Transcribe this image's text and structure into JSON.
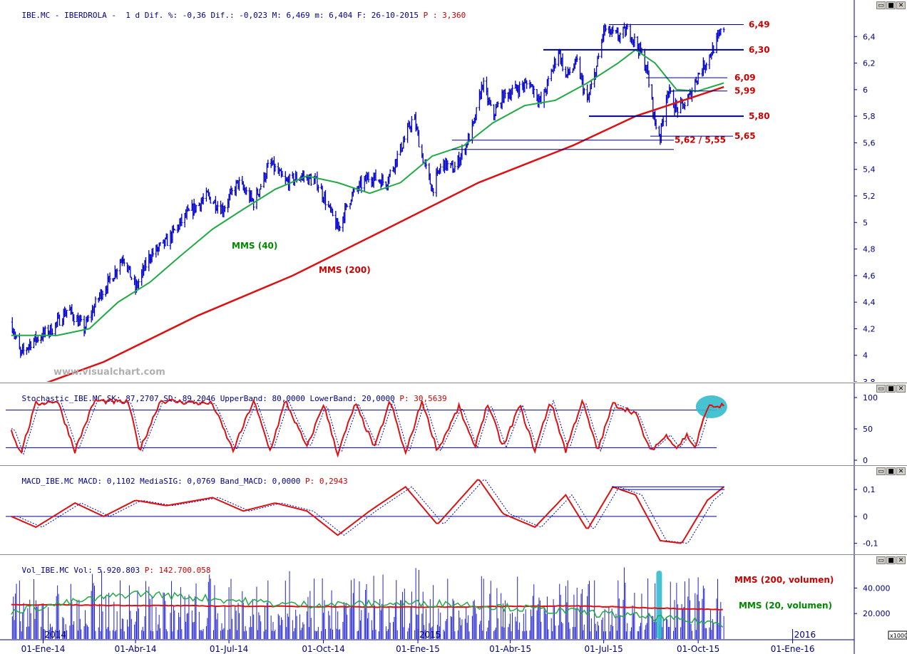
{
  "price_header": {
    "symbol": "IBE.MC",
    "name": "IBERDROLA",
    "period": "1 d",
    "dif_pct_label": "Dif. %:",
    "dif_pct": "-0,36",
    "dif_label": "Dif.:",
    "dif": "-0,023",
    "max_label": "M:",
    "max": "6,469",
    "min_label": "m:",
    "min": "6,404",
    "date_label": "F:",
    "date": "26-10-2015",
    "p_label": "P :",
    "p": "3,360"
  },
  "stoch_header": {
    "name": "Stochastic_IBE.MC",
    "sk_label": "SK:",
    "sk": "87,2707",
    "sd_label": "SD:",
    "sd": "89,2046",
    "ub_label": "UpperBand:",
    "ub": "80,0000",
    "lb_label": "LowerBand:",
    "lb": "20,0000",
    "p_label": "P:",
    "p": "30,5639"
  },
  "macd_header": {
    "name": "MACD_IBE.MC",
    "macd_label": "MACD:",
    "macd": "0,1102",
    "sig_label": "MediaSIG:",
    "sig": "0,0769",
    "band_label": "Band_MACD:",
    "band": "0,0000",
    "p_label": "P:",
    "p": "0,2943"
  },
  "vol_header": {
    "name": "Vol_IBE.MC",
    "vol_label": "Vol:",
    "vol": "5.920.803",
    "p_label": "P:",
    "p": "142.700.058"
  },
  "window_buttons": {
    "minimize": "▭",
    "restore": "■",
    "close": "✕"
  },
  "watermark": "www.visualchart.com",
  "annotations": {
    "mms40": "MMS (40)",
    "mms200": "MMS (200)",
    "mms200_vol": "MMS (200, volumen)",
    "mms20_vol": "MMS (20, volumen)"
  },
  "level_labels": [
    "6,49",
    "6,30",
    "6,09",
    "5,99",
    "5,80",
    "5,65",
    "5,62 / 5,55"
  ],
  "x_axis": {
    "labels": [
      "01-Ene-14",
      "01-Abr-14",
      "01-Jul-14",
      "01-Oct-14",
      "01-Ene-15",
      "01-Abr-15",
      "01-Jul-15",
      "01-Oct-15",
      "01-Ene-16"
    ],
    "year_markers": [
      "2014",
      "2015",
      "2016"
    ],
    "scale_unit": "x1000"
  },
  "colors": {
    "price": "#0000cc",
    "mms40": "#22aa44",
    "mms200": "#dd1111",
    "level_lines": "#00008b",
    "highlight": "#33bbcc",
    "axis_text": "#000080"
  },
  "chart_data": [
    {
      "type": "candlestick",
      "title": "IBE.MC - IBERDROLA",
      "x_range": [
        "2013-11-20",
        "2016-03-01"
      ],
      "ylim": [
        3.8,
        6.6
      ],
      "y_ticks": [
        "3,8",
        "4",
        "4,2",
        "4,4",
        "4,6",
        "4,8",
        "5",
        "5,2",
        "5,4",
        "5,6",
        "5,8",
        "6",
        "6,2",
        "6,4"
      ],
      "price_path": [
        [
          "2013-12-01",
          4.25
        ],
        [
          "2013-12-10",
          4.0
        ],
        [
          "2013-12-20",
          4.1
        ],
        [
          "2014-01-10",
          4.2
        ],
        [
          "2014-01-25",
          4.35
        ],
        [
          "2014-02-10",
          4.2
        ],
        [
          "2014-02-25",
          4.45
        ],
        [
          "2014-03-10",
          4.6
        ],
        [
          "2014-03-20",
          4.75
        ],
        [
          "2014-04-01",
          4.5
        ],
        [
          "2014-04-15",
          4.75
        ],
        [
          "2014-05-01",
          4.85
        ],
        [
          "2014-05-20",
          5.05
        ],
        [
          "2014-06-10",
          5.2
        ],
        [
          "2014-06-25",
          5.1
        ],
        [
          "2014-07-10",
          5.3
        ],
        [
          "2014-07-25",
          5.15
        ],
        [
          "2014-08-10",
          5.45
        ],
        [
          "2014-08-25",
          5.3
        ],
        [
          "2014-09-10",
          5.35
        ],
        [
          "2014-09-25",
          5.3
        ],
        [
          "2014-10-01",
          5.2
        ],
        [
          "2014-10-15",
          4.95
        ],
        [
          "2014-10-28",
          5.2
        ],
        [
          "2014-11-15",
          5.35
        ],
        [
          "2014-12-01",
          5.3
        ],
        [
          "2014-12-15",
          5.55
        ],
        [
          "2014-12-28",
          5.8
        ],
        [
          "2015-01-05",
          5.5
        ],
        [
          "2015-01-15",
          5.25
        ],
        [
          "2015-01-25",
          5.45
        ],
        [
          "2015-02-05",
          5.4
        ],
        [
          "2015-02-15",
          5.55
        ],
        [
          "2015-02-25",
          5.75
        ],
        [
          "2015-03-05",
          6.05
        ],
        [
          "2015-03-15",
          5.8
        ],
        [
          "2015-03-25",
          5.95
        ],
        [
          "2015-04-05",
          6.0
        ],
        [
          "2015-04-20",
          6.05
        ],
        [
          "2015-05-01",
          5.9
        ],
        [
          "2015-05-10",
          6.1
        ],
        [
          "2015-05-18",
          6.3
        ],
        [
          "2015-05-25",
          6.1
        ],
        [
          "2015-06-05",
          6.2
        ],
        [
          "2015-06-15",
          5.9
        ],
        [
          "2015-06-25",
          6.2
        ],
        [
          "2015-07-01",
          6.45
        ],
        [
          "2015-07-15",
          6.4
        ],
        [
          "2015-07-25",
          6.45
        ],
        [
          "2015-08-05",
          6.3
        ],
        [
          "2015-08-12",
          6.15
        ],
        [
          "2015-08-20",
          5.75
        ],
        [
          "2015-08-25",
          5.65
        ],
        [
          "2015-09-01",
          6.0
        ],
        [
          "2015-09-10",
          5.85
        ],
        [
          "2015-09-20",
          5.9
        ],
        [
          "2015-09-30",
          6.1
        ],
        [
          "2015-10-08",
          6.2
        ],
        [
          "2015-10-15",
          6.3
        ],
        [
          "2015-10-26",
          6.47
        ]
      ],
      "series": [
        {
          "name": "MMS (40)",
          "values": [
            [
              "2013-12-01",
              4.15
            ],
            [
              "2014-01-15",
              4.15
            ],
            [
              "2014-02-15",
              4.2
            ],
            [
              "2014-03-15",
              4.4
            ],
            [
              "2014-04-15",
              4.55
            ],
            [
              "2014-05-15",
              4.75
            ],
            [
              "2014-06-15",
              4.95
            ],
            [
              "2014-07-15",
              5.1
            ],
            [
              "2014-08-15",
              5.25
            ],
            [
              "2014-09-15",
              5.35
            ],
            [
              "2014-10-15",
              5.3
            ],
            [
              "2014-11-15",
              5.22
            ],
            [
              "2014-12-15",
              5.3
            ],
            [
              "2015-01-15",
              5.5
            ],
            [
              "2015-02-15",
              5.58
            ],
            [
              "2015-03-15",
              5.75
            ],
            [
              "2015-04-15",
              5.88
            ],
            [
              "2015-05-15",
              5.92
            ],
            [
              "2015-06-15",
              6.05
            ],
            [
              "2015-07-15",
              6.2
            ],
            [
              "2015-08-01",
              6.3
            ],
            [
              "2015-08-20",
              6.2
            ],
            [
              "2015-09-10",
              6.0
            ],
            [
              "2015-10-01",
              5.99
            ],
            [
              "2015-10-26",
              6.05
            ]
          ]
        },
        {
          "name": "MMS (200)",
          "values": [
            [
              "2013-12-20",
              3.75
            ],
            [
              "2014-03-01",
              3.95
            ],
            [
              "2014-06-01",
              4.3
            ],
            [
              "2014-09-01",
              4.6
            ],
            [
              "2014-12-01",
              4.95
            ],
            [
              "2015-03-01",
              5.3
            ],
            [
              "2015-06-01",
              5.58
            ],
            [
              "2015-08-01",
              5.8
            ],
            [
              "2015-10-26",
              6.02
            ]
          ]
        }
      ],
      "levels": [
        {
          "label": "6,49",
          "value": 6.49
        },
        {
          "label": "6,30",
          "value": 6.3
        },
        {
          "label": "6,09",
          "value": 6.09
        },
        {
          "label": "5,99",
          "value": 5.99
        },
        {
          "label": "5,80",
          "value": 5.8
        },
        {
          "label": "5,65",
          "value": 5.65
        },
        {
          "label": "5,62 / 5,55",
          "values": [
            5.62,
            5.55
          ]
        }
      ]
    },
    {
      "type": "line",
      "title": "Stochastic_IBE.MC",
      "ylim": [
        0,
        100
      ],
      "y_ticks": [
        "0",
        "50",
        "100"
      ],
      "bands": [
        80,
        20
      ],
      "series": [
        {
          "name": "SK",
          "values": [
            [
              "2013-12-01",
              50
            ],
            [
              "2013-12-10",
              10
            ],
            [
              "2013-12-25",
              90
            ],
            [
              "2014-01-15",
              95
            ],
            [
              "2014-02-01",
              15
            ],
            [
              "2014-02-20",
              95
            ],
            [
              "2014-03-25",
              92
            ],
            [
              "2014-04-05",
              15
            ],
            [
              "2014-04-25",
              95
            ],
            [
              "2014-06-15",
              90
            ],
            [
              "2014-07-05",
              15
            ],
            [
              "2014-07-25",
              95
            ],
            [
              "2014-08-10",
              15
            ],
            [
              "2014-08-25",
              95
            ],
            [
              "2014-09-15",
              20
            ],
            [
              "2014-10-01",
              90
            ],
            [
              "2014-10-15",
              10
            ],
            [
              "2014-11-01",
              90
            ],
            [
              "2014-11-20",
              20
            ],
            [
              "2014-12-05",
              95
            ],
            [
              "2014-12-20",
              10
            ],
            [
              "2015-01-05",
              95
            ],
            [
              "2015-01-20",
              15
            ],
            [
              "2015-02-10",
              85
            ],
            [
              "2015-02-25",
              20
            ],
            [
              "2015-03-10",
              90
            ],
            [
              "2015-03-25",
              20
            ],
            [
              "2015-04-10",
              88
            ],
            [
              "2015-04-25",
              15
            ],
            [
              "2015-05-10",
              95
            ],
            [
              "2015-05-25",
              15
            ],
            [
              "2015-06-10",
              95
            ],
            [
              "2015-06-25",
              15
            ],
            [
              "2015-07-10",
              90
            ],
            [
              "2015-08-01",
              75
            ],
            [
              "2015-08-15",
              15
            ],
            [
              "2015-09-01",
              40
            ],
            [
              "2015-09-10",
              20
            ],
            [
              "2015-09-20",
              40
            ],
            [
              "2015-09-28",
              20
            ],
            [
              "2015-10-10",
              85
            ],
            [
              "2015-10-26",
              87
            ]
          ]
        },
        {
          "name": "SD",
          "values": []
        }
      ]
    },
    {
      "type": "line",
      "title": "MACD_IBE.MC",
      "ylim": [
        -0.13,
        0.14
      ],
      "y_ticks": [
        "0,1",
        "0",
        "-0,1"
      ],
      "series": [
        {
          "name": "MACD",
          "values": [
            [
              "2013-12-01",
              0.0
            ],
            [
              "2013-12-25",
              -0.04
            ],
            [
              "2014-02-01",
              0.05
            ],
            [
              "2014-03-01",
              0.0
            ],
            [
              "2014-04-01",
              0.06
            ],
            [
              "2014-05-01",
              0.04
            ],
            [
              "2014-06-15",
              0.07
            ],
            [
              "2014-07-15",
              0.02
            ],
            [
              "2014-08-15",
              0.05
            ],
            [
              "2014-09-15",
              0.02
            ],
            [
              "2014-10-15",
              -0.07
            ],
            [
              "2014-11-15",
              0.02
            ],
            [
              "2014-12-20",
              0.11
            ],
            [
              "2015-01-20",
              -0.03
            ],
            [
              "2015-03-01",
              0.14
            ],
            [
              "2015-03-25",
              0.01
            ],
            [
              "2015-04-25",
              -0.04
            ],
            [
              "2015-05-25",
              0.08
            ],
            [
              "2015-06-15",
              -0.05
            ],
            [
              "2015-07-10",
              0.11
            ],
            [
              "2015-08-01",
              0.08
            ],
            [
              "2015-08-25",
              -0.09
            ],
            [
              "2015-09-15",
              -0.1
            ],
            [
              "2015-10-10",
              0.06
            ],
            [
              "2015-10-26",
              0.11
            ]
          ]
        },
        {
          "name": "MediaSIG",
          "values": []
        }
      ],
      "levels": [
        0.11,
        0.1
      ]
    },
    {
      "type": "bar",
      "title": "Vol_IBE.MC",
      "ylim": [
        0,
        57000
      ],
      "y_ticks": [
        "20.000",
        "40.000"
      ],
      "unit": "x1000",
      "series": [
        {
          "name": "MMS (200, volumen)",
          "values": [
            [
              "2013-12-01",
              27000
            ],
            [
              "2014-06-01",
              26000
            ],
            [
              "2015-01-01",
              25000
            ],
            [
              "2015-06-01",
              26000
            ],
            [
              "2015-10-26",
              23000
            ]
          ]
        },
        {
          "name": "MMS (20, volumen)",
          "values": [
            [
              "2013-12-01",
              22000
            ],
            [
              "2014-04-01",
              36000
            ],
            [
              "2014-09-01",
              27000
            ],
            [
              "2015-02-01",
              28000
            ],
            [
              "2015-08-01",
              18000
            ],
            [
              "2015-10-26",
              12000
            ]
          ]
        }
      ]
    }
  ]
}
